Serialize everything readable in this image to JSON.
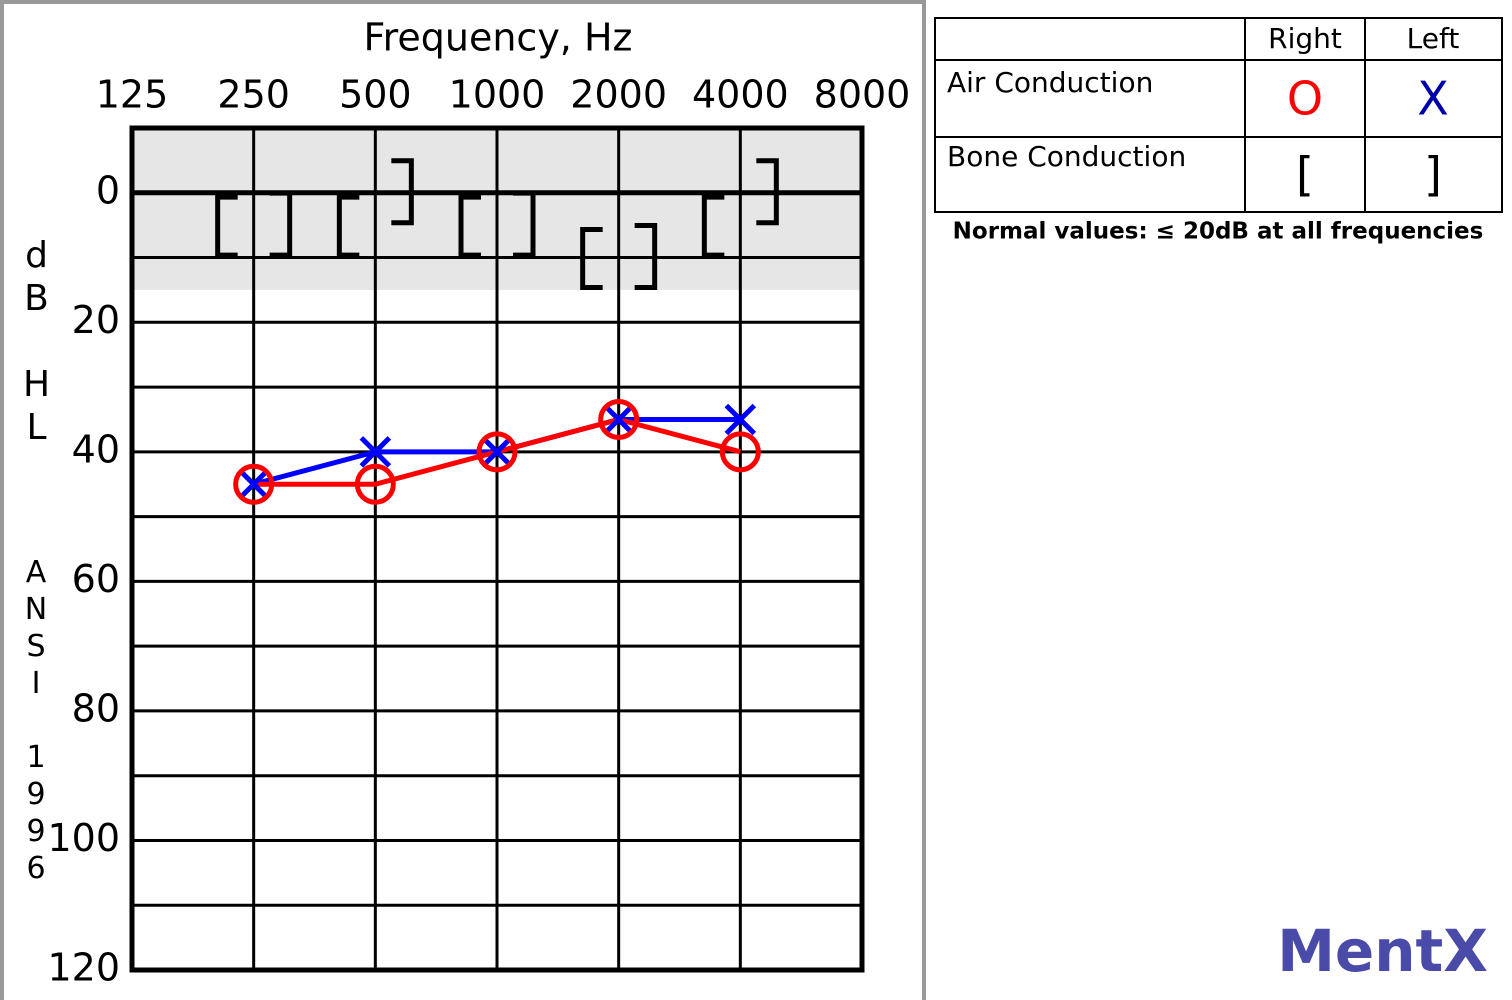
{
  "chart_data": {
    "type": "audiogram",
    "title": "Frequency, Hz",
    "y_label": "dB HL",
    "y_label_note": "ANSI 1996",
    "xscale": "log",
    "xlim": [
      125,
      8000
    ],
    "xticks": [
      125,
      250,
      500,
      1000,
      2000,
      4000,
      8000
    ],
    "ylim": [
      -10,
      120
    ],
    "y_reversed": true,
    "yticks": [
      0,
      20,
      40,
      60,
      80,
      100,
      120
    ],
    "y_minor_ticks": [
      10,
      30,
      50,
      70,
      90,
      110
    ],
    "grid": true,
    "normal_band": [
      -10,
      15
    ],
    "x": [
      250,
      500,
      1000,
      2000,
      4000
    ],
    "series": [
      {
        "ear": "Left",
        "conduction": "Air Conduction",
        "marker": "X",
        "color": "#0000ff",
        "line": true,
        "values": [
          45,
          40,
          40,
          35,
          35
        ]
      },
      {
        "ear": "Right",
        "conduction": "Air Conduction",
        "marker": "O",
        "color": "#ff0000",
        "line": true,
        "values": [
          45,
          45,
          40,
          35,
          40
        ]
      },
      {
        "ear": "Right",
        "conduction": "Bone Conduction",
        "marker": "[",
        "color": "#000000",
        "line": false,
        "values": [
          5,
          5,
          5,
          10,
          5
        ]
      },
      {
        "ear": "Left",
        "conduction": "Bone Conduction",
        "marker": "]",
        "color": "#000000",
        "line": false,
        "values": [
          5,
          0,
          5,
          10,
          0
        ]
      }
    ],
    "legend": {
      "columns": [
        "Right",
        "Left"
      ],
      "rows": [
        "Air Conduction",
        "Bone Conduction"
      ],
      "note": "Normal values: ≤ 20dB at all frequencies"
    },
    "watermark": "MentX"
  }
}
